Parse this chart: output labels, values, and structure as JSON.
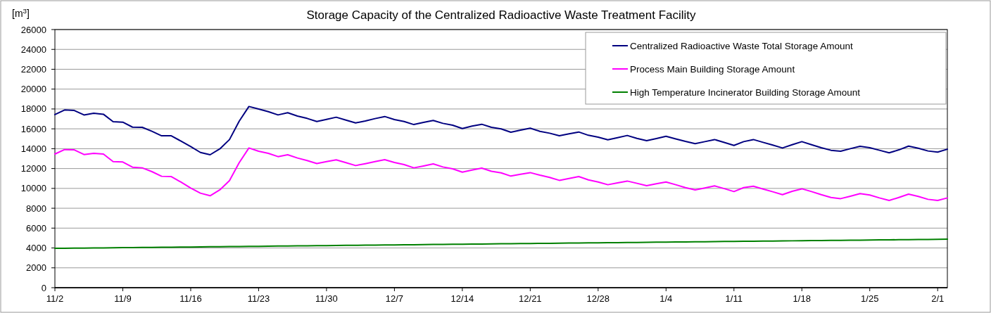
{
  "chart_data": {
    "type": "line",
    "title": "Storage Capacity of the Centralized Radioactive Waste Treatment Facility",
    "ylabel": "[m$^{3}$]",
    "categories": [
      "11/2",
      null,
      null,
      null,
      null,
      null,
      null,
      "11/9",
      null,
      null,
      null,
      null,
      null,
      null,
      "11/16",
      null,
      null,
      null,
      null,
      null,
      null,
      "11/23",
      null,
      null,
      null,
      null,
      null,
      null,
      "11/30",
      null,
      null,
      null,
      null,
      null,
      null,
      "12/7",
      null,
      null,
      null,
      null,
      null,
      null,
      "12/14",
      null,
      null,
      null,
      null,
      null,
      null,
      "12/21",
      null,
      null,
      null,
      null,
      null,
      null,
      "12/28",
      null,
      null,
      null,
      null,
      null,
      null,
      "1/4",
      null,
      null,
      null,
      null,
      null,
      null,
      "1/11",
      null,
      null,
      null,
      null,
      null,
      null,
      "1/18",
      null,
      null,
      null,
      null,
      null,
      null,
      "1/25",
      null,
      null,
      null,
      null,
      null,
      null,
      "2/1",
      null
    ],
    "series": [
      {
        "name": "Centralized Radioactive Waste Total Storage Amount",
        "color": "#000080",
        "values": [
          17430,
          17900,
          17850,
          17400,
          17570,
          17470,
          16720,
          16670,
          16170,
          16150,
          15750,
          15300,
          15300,
          14760,
          14210,
          13620,
          13390,
          13980,
          14920,
          16770,
          18250,
          17990,
          17730,
          17400,
          17620,
          17290,
          17050,
          16740,
          16950,
          17170,
          16880,
          16600,
          16790,
          17030,
          17240,
          16930,
          16740,
          16430,
          16650,
          16840,
          16550,
          16360,
          16030,
          16270,
          16460,
          16150,
          15990,
          15660,
          15870,
          16060,
          15750,
          15560,
          15300,
          15490,
          15680,
          15350,
          15160,
          14900,
          15110,
          15330,
          15040,
          14810,
          15020,
          15250,
          14990,
          14730,
          14500,
          14710,
          14920,
          14630,
          14330,
          14710,
          14920,
          14640,
          14360,
          14070,
          14400,
          14710,
          14400,
          14100,
          13840,
          13740,
          14000,
          14240,
          14100,
          13840,
          13580,
          13880,
          14260,
          14050,
          13770,
          13650,
          13950
        ]
      },
      {
        "name": "Process Main Building Storage Amount",
        "color": "#ff00ff",
        "values": [
          13460,
          13910,
          13880,
          13410,
          13530,
          13460,
          12700,
          12660,
          12140,
          12070,
          11690,
          11220,
          11190,
          10630,
          10040,
          9520,
          9260,
          9850,
          10790,
          12590,
          14070,
          13740,
          13530,
          13200,
          13390,
          13060,
          12800,
          12510,
          12700,
          12870,
          12590,
          12300,
          12490,
          12700,
          12890,
          12610,
          12400,
          12070,
          12260,
          12470,
          12160,
          11970,
          11640,
          11850,
          12040,
          11720,
          11570,
          11240,
          11430,
          11590,
          11330,
          11100,
          10810,
          11000,
          11190,
          10860,
          10650,
          10370,
          10560,
          10740,
          10510,
          10270,
          10460,
          10650,
          10370,
          10080,
          9850,
          10040,
          10250,
          9980,
          9680,
          10080,
          10220,
          9940,
          9660,
          9370,
          9710,
          9960,
          9680,
          9370,
          9090,
          8970,
          9210,
          9470,
          9330,
          9040,
          8780,
          9090,
          9420,
          9190,
          8900,
          8780,
          9040
        ]
      },
      {
        "name": "High Temperature Incinerator Building Storage Amount",
        "color": "#008000",
        "values": [
          3960,
          3970,
          3980,
          3990,
          4000,
          4010,
          4020,
          4030,
          4040,
          4050,
          4060,
          4070,
          4080,
          4090,
          4100,
          4110,
          4120,
          4130,
          4140,
          4150,
          4160,
          4170,
          4180,
          4190,
          4200,
          4210,
          4220,
          4230,
          4240,
          4250,
          4260,
          4270,
          4280,
          4290,
          4300,
          4310,
          4320,
          4330,
          4340,
          4350,
          4360,
          4370,
          4380,
          4390,
          4400,
          4410,
          4420,
          4430,
          4440,
          4450,
          4460,
          4470,
          4480,
          4490,
          4500,
          4510,
          4520,
          4530,
          4540,
          4550,
          4560,
          4570,
          4580,
          4590,
          4600,
          4610,
          4620,
          4630,
          4640,
          4650,
          4660,
          4670,
          4680,
          4690,
          4700,
          4710,
          4720,
          4730,
          4740,
          4750,
          4760,
          4770,
          4780,
          4790,
          4800,
          4810,
          4820,
          4830,
          4840,
          4850,
          4860,
          4870,
          4880
        ]
      }
    ],
    "ylim": [
      0,
      26000
    ],
    "yticks": [
      0,
      2000,
      4000,
      6000,
      8000,
      10000,
      12000,
      14000,
      16000,
      18000,
      20000,
      22000,
      24000,
      26000
    ],
    "grid": "y",
    "legend": "top right",
    "marker": "none",
    "line_style": "solid"
  }
}
